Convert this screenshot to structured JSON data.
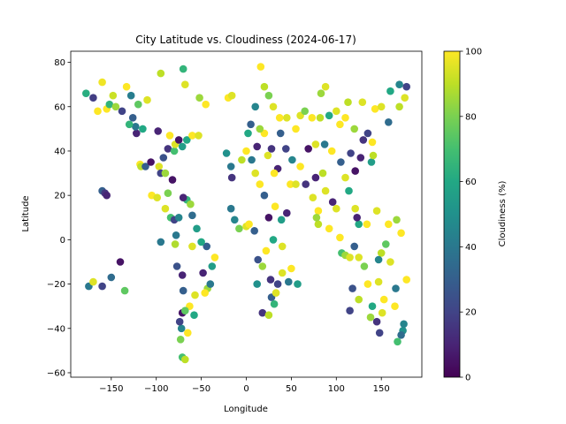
{
  "chart_data": {
    "type": "scatter",
    "title": "City Latitude vs. Cloudiness (2024-06-17)",
    "xlabel": "Longitude",
    "ylabel": "Latitude",
    "xlim": [
      -195,
      195
    ],
    "ylim": [
      -62,
      85
    ],
    "xticks": [
      -150,
      -100,
      -50,
      0,
      50,
      100,
      150
    ],
    "yticks": [
      -60,
      -40,
      -20,
      0,
      20,
      40,
      60,
      80
    ],
    "grid": false,
    "legend": "none",
    "colorbar": {
      "label": "Cloudiness (%)",
      "min": 0,
      "max": 100,
      "ticks": [
        0,
        20,
        40,
        60,
        80,
        100
      ],
      "colormap": "viridis"
    },
    "points": [
      {
        "x": -178,
        "y": 66,
        "c": 62
      },
      {
        "x": -170,
        "y": 64,
        "c": 18
      },
      {
        "x": -160,
        "y": 71,
        "c": 98
      },
      {
        "x": -155,
        "y": 59,
        "c": 100
      },
      {
        "x": -152,
        "y": 61,
        "c": 65
      },
      {
        "x": -148,
        "y": 65,
        "c": 92
      },
      {
        "x": -133,
        "y": 69,
        "c": 100
      },
      {
        "x": -128,
        "y": 65,
        "c": 42
      },
      {
        "x": -120,
        "y": 61,
        "c": 75
      },
      {
        "x": -126,
        "y": 55,
        "c": 30
      },
      {
        "x": -122,
        "y": 48,
        "c": 10
      },
      {
        "x": -123,
        "y": 51,
        "c": 40
      },
      {
        "x": -118,
        "y": 34,
        "c": 100
      },
      {
        "x": -117,
        "y": 33,
        "c": 90
      },
      {
        "x": -112,
        "y": 33,
        "c": 30
      },
      {
        "x": -106,
        "y": 35,
        "c": 5
      },
      {
        "x": -97,
        "y": 33,
        "c": 95
      },
      {
        "x": -95,
        "y": 30,
        "c": 20
      },
      {
        "x": -90,
        "y": 30,
        "c": 85
      },
      {
        "x": -87,
        "y": 41,
        "c": 15
      },
      {
        "x": -80,
        "y": 40,
        "c": 70
      },
      {
        "x": -79,
        "y": 43,
        "c": 95
      },
      {
        "x": -75,
        "y": 45,
        "c": 5
      },
      {
        "x": -71,
        "y": 42,
        "c": 55
      },
      {
        "x": -66,
        "y": 45,
        "c": 60
      },
      {
        "x": -60,
        "y": 47,
        "c": 100
      },
      {
        "x": -53,
        "y": 47,
        "c": 95
      },
      {
        "x": -105,
        "y": 20,
        "c": 100
      },
      {
        "x": -99,
        "y": 19,
        "c": 95
      },
      {
        "x": -90,
        "y": 14,
        "c": 95
      },
      {
        "x": -84,
        "y": 10,
        "c": 70
      },
      {
        "x": -80,
        "y": 9,
        "c": 20
      },
      {
        "x": -75,
        "y": 10,
        "c": 45
      },
      {
        "x": -66,
        "y": 18,
        "c": 65
      },
      {
        "x": -62,
        "y": 16,
        "c": 85
      },
      {
        "x": -70,
        "y": 19,
        "c": 10
      },
      {
        "x": -78,
        "y": 2,
        "c": 40
      },
      {
        "x": -79,
        "y": -2,
        "c": 88
      },
      {
        "x": -77,
        "y": -12,
        "c": 25
      },
      {
        "x": -71,
        "y": -16,
        "c": 10
      },
      {
        "x": -70,
        "y": -23,
        "c": 30
      },
      {
        "x": -71,
        "y": -33,
        "c": 5
      },
      {
        "x": -72,
        "y": -40,
        "c": 45
      },
      {
        "x": -73,
        "y": -45,
        "c": 80
      },
      {
        "x": -71,
        "y": -53,
        "c": 70
      },
      {
        "x": -68,
        "y": -54,
        "c": 90
      },
      {
        "x": -65,
        "y": -42,
        "c": 100
      },
      {
        "x": -58,
        "y": -34,
        "c": 60
      },
      {
        "x": -57,
        "y": -25,
        "c": 95
      },
      {
        "x": -48,
        "y": -15,
        "c": 10
      },
      {
        "x": -43,
        "y": -22,
        "c": 85
      },
      {
        "x": -46,
        "y": -24,
        "c": 100
      },
      {
        "x": -38,
        "y": -12,
        "c": 55
      },
      {
        "x": -35,
        "y": -8,
        "c": 100
      },
      {
        "x": -44,
        "y": -3,
        "c": 30
      },
      {
        "x": -50,
        "y": -1,
        "c": 60
      },
      {
        "x": -60,
        "y": -3,
        "c": 95
      },
      {
        "x": -95,
        "y": -1,
        "c": 40
      },
      {
        "x": -160,
        "y": 22,
        "c": 30
      },
      {
        "x": -157,
        "y": 21,
        "c": 15
      },
      {
        "x": -155,
        "y": 20,
        "c": 10
      },
      {
        "x": -175,
        "y": -21,
        "c": 40
      },
      {
        "x": -170,
        "y": -19,
        "c": 95
      },
      {
        "x": -160,
        "y": -21,
        "c": 20
      },
      {
        "x": -150,
        "y": -17,
        "c": 35
      },
      {
        "x": -140,
        "y": -10,
        "c": 5
      },
      {
        "x": -135,
        "y": -23,
        "c": 75
      },
      {
        "x": -20,
        "y": 64,
        "c": 100
      },
      {
        "x": -16,
        "y": 65,
        "c": 95
      },
      {
        "x": -22,
        "y": 39,
        "c": 50
      },
      {
        "x": -17,
        "y": 33,
        "c": 40
      },
      {
        "x": -16,
        "y": 28,
        "c": 15
      },
      {
        "x": -17,
        "y": 14,
        "c": 40
      },
      {
        "x": -13,
        "y": 9,
        "c": 45
      },
      {
        "x": -8,
        "y": 5,
        "c": 80
      },
      {
        "x": 0,
        "y": 6,
        "c": 95
      },
      {
        "x": 3,
        "y": 7,
        "c": 100
      },
      {
        "x": 9,
        "y": 4,
        "c": 30
      },
      {
        "x": 13,
        "y": -9,
        "c": 25
      },
      {
        "x": 12,
        "y": -20,
        "c": 50
      },
      {
        "x": 18,
        "y": -33,
        "c": 15
      },
      {
        "x": 25,
        "y": -34,
        "c": 90
      },
      {
        "x": 28,
        "y": -26,
        "c": 30
      },
      {
        "x": 31,
        "y": -29,
        "c": 65
      },
      {
        "x": 35,
        "y": -20,
        "c": 20
      },
      {
        "x": 40,
        "y": -15,
        "c": 95
      },
      {
        "x": 40,
        "y": -3,
        "c": 95
      },
      {
        "x": 39,
        "y": 9,
        "c": 55
      },
      {
        "x": 32,
        "y": 15,
        "c": 100
      },
      {
        "x": 45,
        "y": 12,
        "c": 10
      },
      {
        "x": 49,
        "y": 25,
        "c": 100
      },
      {
        "x": 55,
        "y": 25,
        "c": 95
      },
      {
        "x": 51,
        "y": 36,
        "c": 45
      },
      {
        "x": 44,
        "y": 41,
        "c": 20
      },
      {
        "x": 37,
        "y": 55,
        "c": 100
      },
      {
        "x": 30,
        "y": 60,
        "c": 95
      },
      {
        "x": 25,
        "y": 65,
        "c": 80
      },
      {
        "x": 20,
        "y": 69,
        "c": 90
      },
      {
        "x": 16,
        "y": 78,
        "c": 100
      },
      {
        "x": 10,
        "y": 60,
        "c": 45
      },
      {
        "x": 5,
        "y": 52,
        "c": 30
      },
      {
        "x": 2,
        "y": 48,
        "c": 60
      },
      {
        "x": 12,
        "y": 42,
        "c": 10
      },
      {
        "x": 24,
        "y": 38,
        "c": 95
      },
      {
        "x": 28,
        "y": 41,
        "c": 15
      },
      {
        "x": 35,
        "y": 32,
        "c": 10
      },
      {
        "x": 31,
        "y": 30,
        "c": 100
      },
      {
        "x": 60,
        "y": 56,
        "c": 95
      },
      {
        "x": 73,
        "y": 55,
        "c": 100
      },
      {
        "x": 82,
        "y": 55,
        "c": 90
      },
      {
        "x": 83,
        "y": 66,
        "c": 85
      },
      {
        "x": 88,
        "y": 69,
        "c": 95
      },
      {
        "x": 104,
        "y": 52,
        "c": 100
      },
      {
        "x": 113,
        "y": 62,
        "c": 90
      },
      {
        "x": 129,
        "y": 62,
        "c": 95
      },
      {
        "x": 135,
        "y": 48,
        "c": 20
      },
      {
        "x": 143,
        "y": 59,
        "c": 100
      },
      {
        "x": 150,
        "y": 60,
        "c": 95
      },
      {
        "x": 158,
        "y": 53,
        "c": 35
      },
      {
        "x": 160,
        "y": 67,
        "c": 60
      },
      {
        "x": 170,
        "y": 70,
        "c": 45
      },
      {
        "x": 178,
        "y": 69,
        "c": 20
      },
      {
        "x": 69,
        "y": 41,
        "c": 5
      },
      {
        "x": 77,
        "y": 43,
        "c": 95
      },
      {
        "x": 87,
        "y": 43,
        "c": 40
      },
      {
        "x": 77,
        "y": 28,
        "c": 10
      },
      {
        "x": 88,
        "y": 22,
        "c": 95
      },
      {
        "x": 80,
        "y": 13,
        "c": 100
      },
      {
        "x": 80,
        "y": 7,
        "c": 90
      },
      {
        "x": 96,
        "y": 17,
        "c": 10
      },
      {
        "x": 100,
        "y": 14,
        "c": 95
      },
      {
        "x": 104,
        "y": 1,
        "c": 100
      },
      {
        "x": 106,
        "y": -6,
        "c": 70
      },
      {
        "x": 110,
        "y": -7,
        "c": 85
      },
      {
        "x": 115,
        "y": -8,
        "c": 95
      },
      {
        "x": 116,
        "y": 39,
        "c": 20
      },
      {
        "x": 121,
        "y": 31,
        "c": 5
      },
      {
        "x": 114,
        "y": 22,
        "c": 60
      },
      {
        "x": 121,
        "y": 14,
        "c": 95
      },
      {
        "x": 127,
        "y": 37,
        "c": 10
      },
      {
        "x": 139,
        "y": 35,
        "c": 55
      },
      {
        "x": 141,
        "y": 38,
        "c": 90
      },
      {
        "x": 115,
        "y": -32,
        "c": 20
      },
      {
        "x": 138,
        "y": -35,
        "c": 85
      },
      {
        "x": 145,
        "y": -37,
        "c": 15
      },
      {
        "x": 151,
        "y": -33,
        "c": 95
      },
      {
        "x": 153,
        "y": -27,
        "c": 100
      },
      {
        "x": 147,
        "y": -19,
        "c": 95
      },
      {
        "x": 131,
        "y": -12,
        "c": 80
      },
      {
        "x": 148,
        "y": -42,
        "c": 20
      },
      {
        "x": 166,
        "y": -22,
        "c": 40
      },
      {
        "x": 174,
        "y": -41,
        "c": 50
      },
      {
        "x": 172,
        "y": -43,
        "c": 35
      },
      {
        "x": 168,
        "y": -46,
        "c": 70
      },
      {
        "x": 178,
        "y": -18,
        "c": 100
      },
      {
        "x": 172,
        "y": 3,
        "c": 100
      },
      {
        "x": 167,
        "y": 9,
        "c": 85
      },
      {
        "x": 145,
        "y": 13,
        "c": 95
      },
      {
        "x": 134,
        "y": 7,
        "c": 100
      },
      {
        "x": 125,
        "y": 7,
        "c": 60
      },
      {
        "x": 123,
        "y": 10,
        "c": 10
      },
      {
        "x": 158,
        "y": 7,
        "c": 100
      },
      {
        "x": 150,
        "y": -6,
        "c": 90
      },
      {
        "x": 147,
        "y": -9,
        "c": 45
      },
      {
        "x": 155,
        "y": -2,
        "c": 75
      },
      {
        "x": -45,
        "y": 61,
        "c": 100
      },
      {
        "x": -52,
        "y": 64,
        "c": 85
      },
      {
        "x": -68,
        "y": 70,
        "c": 95
      },
      {
        "x": -70,
        "y": 77,
        "c": 65
      },
      {
        "x": -95,
        "y": 75,
        "c": 90
      },
      {
        "x": -110,
        "y": 63,
        "c": 95
      },
      {
        "x": -115,
        "y": 50,
        "c": 60
      },
      {
        "x": -98,
        "y": 49,
        "c": 10
      },
      {
        "x": -85,
        "y": 47,
        "c": 100
      },
      {
        "x": -92,
        "y": 37,
        "c": 25
      },
      {
        "x": -82,
        "y": 27,
        "c": 5
      },
      {
        "x": -87,
        "y": 21,
        "c": 80
      },
      {
        "x": -60,
        "y": 11,
        "c": 35
      },
      {
        "x": -55,
        "y": 5,
        "c": 55
      },
      {
        "x": -40,
        "y": -20,
        "c": 40
      },
      {
        "x": -63,
        "y": -30,
        "c": 100
      },
      {
        "x": -68,
        "y": -32,
        "c": 75
      },
      {
        "x": -74,
        "y": -37,
        "c": 20
      },
      {
        "x": 20,
        "y": 48,
        "c": 100
      },
      {
        "x": 15,
        "y": 50,
        "c": 85
      },
      {
        "x": 38,
        "y": 48,
        "c": 30
      },
      {
        "x": 45,
        "y": 55,
        "c": 95
      },
      {
        "x": 55,
        "y": 50,
        "c": 100
      },
      {
        "x": 65,
        "y": 58,
        "c": 80
      },
      {
        "x": 92,
        "y": 56,
        "c": 60
      },
      {
        "x": 100,
        "y": 58,
        "c": 95
      },
      {
        "x": 110,
        "y": 55,
        "c": 100
      },
      {
        "x": 120,
        "y": 50,
        "c": 85
      },
      {
        "x": 130,
        "y": 45,
        "c": 15
      },
      {
        "x": 140,
        "y": 44,
        "c": 100
      },
      {
        "x": 95,
        "y": 40,
        "c": 100
      },
      {
        "x": 105,
        "y": 35,
        "c": 30
      },
      {
        "x": 110,
        "y": 28,
        "c": 95
      },
      {
        "x": 85,
        "y": 30,
        "c": 90
      },
      {
        "x": 60,
        "y": 33,
        "c": 100
      },
      {
        "x": 66,
        "y": 25,
        "c": 15
      },
      {
        "x": 74,
        "y": 19,
        "c": 95
      },
      {
        "x": 78,
        "y": 10,
        "c": 85
      },
      {
        "x": 92,
        "y": 5,
        "c": 100
      },
      {
        "x": 120,
        "y": -3,
        "c": 30
      },
      {
        "x": 125,
        "y": -8,
        "c": 95
      },
      {
        "x": 135,
        "y": -20,
        "c": 100
      },
      {
        "x": 118,
        "y": -22,
        "c": 25
      },
      {
        "x": 125,
        "y": -27,
        "c": 90
      },
      {
        "x": 140,
        "y": -30,
        "c": 60
      },
      {
        "x": 160,
        "y": -10,
        "c": 95
      },
      {
        "x": 165,
        "y": -30,
        "c": 100
      },
      {
        "x": 175,
        "y": -38,
        "c": 45
      },
      {
        "x": 170,
        "y": 60,
        "c": 90
      },
      {
        "x": 176,
        "y": 64,
        "c": 95
      },
      {
        "x": -165,
        "y": 58,
        "c": 100
      },
      {
        "x": -145,
        "y": 60,
        "c": 85
      },
      {
        "x": -138,
        "y": 58,
        "c": 20
      },
      {
        "x": -130,
        "y": 52,
        "c": 65
      },
      {
        "x": 0,
        "y": 40,
        "c": 100
      },
      {
        "x": -5,
        "y": 36,
        "c": 90
      },
      {
        "x": 6,
        "y": 36,
        "c": 40
      },
      {
        "x": 10,
        "y": 30,
        "c": 95
      },
      {
        "x": 15,
        "y": 25,
        "c": 100
      },
      {
        "x": 20,
        "y": 20,
        "c": 30
      },
      {
        "x": 25,
        "y": 10,
        "c": 5
      },
      {
        "x": 30,
        "y": 0,
        "c": 60
      },
      {
        "x": 22,
        "y": -5,
        "c": 100
      },
      {
        "x": 18,
        "y": -12,
        "c": 85
      },
      {
        "x": 27,
        "y": -18,
        "c": 15
      },
      {
        "x": 33,
        "y": -24,
        "c": 95
      },
      {
        "x": 47,
        "y": -19,
        "c": 40
      },
      {
        "x": 50,
        "y": -13,
        "c": 100
      },
      {
        "x": 57,
        "y": -20,
        "c": 55
      }
    ]
  }
}
